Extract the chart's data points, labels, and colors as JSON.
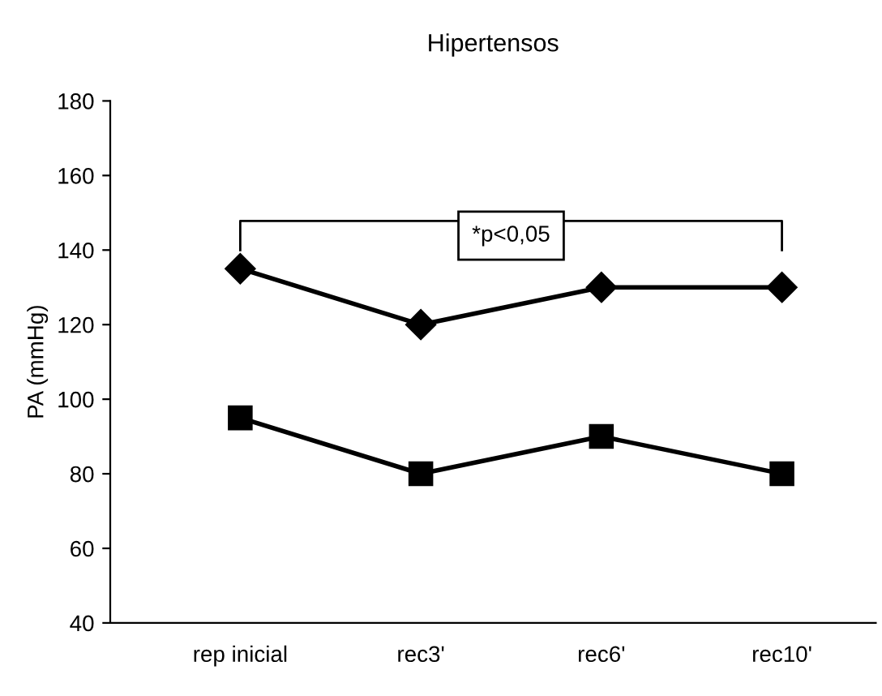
{
  "chart_data": {
    "type": "line",
    "title": "Hipertensos",
    "ylabel": "PA (mmHg)",
    "categories": [
      "rep inicial",
      "rec3'",
      "rec6'",
      "rec10'"
    ],
    "series": [
      {
        "color": "#000000",
        "marker": "diamond",
        "values": [
          135,
          120,
          130,
          130
        ]
      },
      {
        "color": "#000000",
        "marker": "square",
        "values": [
          95,
          80,
          90,
          80
        ]
      }
    ],
    "ylim": [
      40,
      180
    ],
    "yticks": [
      40,
      60,
      80,
      100,
      120,
      140,
      160,
      180
    ],
    "grid": false,
    "legend": false,
    "line_style": "solid",
    "annotations": [
      "*p<0,05"
    ]
  }
}
